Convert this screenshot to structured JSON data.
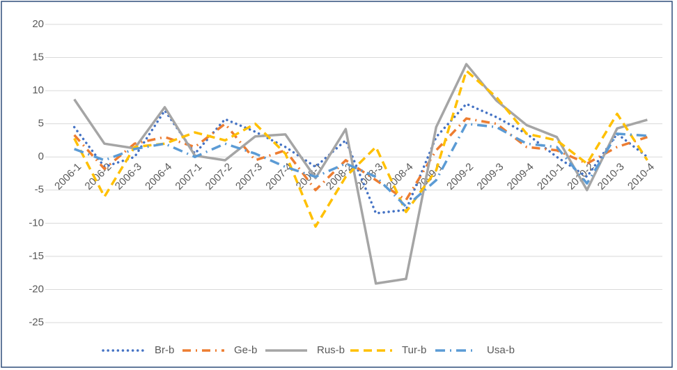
{
  "chart_data": {
    "type": "line",
    "categories": [
      "2006-1",
      "2006-2",
      "2006-3",
      "2006-4",
      "2007-1",
      "2007-2",
      "2007-3",
      "2007-4",
      "2008-1",
      "2008-2",
      "2008-3",
      "2008-4",
      "2009-1",
      "2009-2",
      "2009-3",
      "2009-4",
      "2010-1",
      "2010-2",
      "2010-3",
      "2010-4"
    ],
    "series": [
      {
        "name": "Br-b",
        "color": "#4472c4",
        "values": [
          4.5,
          -1.5,
          0,
          7,
          0.5,
          5.7,
          3.8,
          1.5,
          -1.5,
          2.5,
          -8.5,
          -8,
          3,
          8,
          6,
          3.5,
          0,
          -3,
          3.5,
          0
        ]
      },
      {
        "name": "Ge-b",
        "color": "#ed7d31",
        "values": [
          3.3,
          -1.8,
          2,
          3,
          1.5,
          5,
          -0.5,
          1,
          -5,
          -0.5,
          -3.5,
          -6.5,
          1,
          5.8,
          5,
          1.5,
          1,
          -1,
          1.5,
          3
        ]
      },
      {
        "name": "Rus-b",
        "color": "#a5a5a5",
        "values": [
          8.7,
          2,
          1.3,
          7.5,
          0.2,
          -0.5,
          3.1,
          3.4,
          -3.2,
          4.2,
          -19.1,
          -18.4,
          4.5,
          14,
          8.5,
          4.8,
          3,
          -5,
          4.3,
          5.6
        ]
      },
      {
        "name": "Tur-b",
        "color": "#ffc000",
        "values": [
          2.8,
          -6,
          1.5,
          2,
          3.7,
          2.5,
          5,
          0.5,
          -10.5,
          -3,
          1.5,
          -8.3,
          -2,
          13,
          9,
          3.5,
          2.5,
          -1,
          6.5,
          -0.5
        ]
      },
      {
        "name": "Usa-b",
        "color": "#5b9bd5",
        "values": [
          1.2,
          -0.5,
          1.2,
          2,
          0,
          2,
          0.5,
          -1.5,
          -3,
          -1,
          -3,
          -7.5,
          -3.5,
          5,
          4.5,
          2,
          1.5,
          -4,
          3.5,
          3.2
        ]
      }
    ],
    "ylim": [
      -25,
      20
    ],
    "yticks": [
      -25,
      -20,
      -15,
      -10,
      -5,
      0,
      5,
      10,
      15,
      20
    ],
    "grid": true,
    "legend": "bottom"
  }
}
